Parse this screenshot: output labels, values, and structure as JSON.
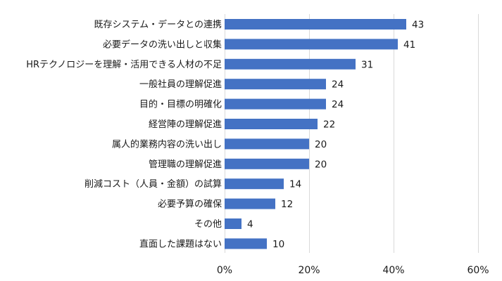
{
  "chart_data": {
    "type": "bar",
    "orientation": "horizontal",
    "categories": [
      "既存システム・データとの連携",
      "必要データの洗い出しと収集",
      "HRテクノロジーを理解・活用できる人材の不足",
      "一般社員の理解促進",
      "目的・目標の明確化",
      "経営陣の理解促進",
      "属人的業務内容の洗い出し",
      "管理職の理解促進",
      "削減コスト（人員・金額）の試算",
      "必要予算の確保",
      "その他",
      "直面した課題はない"
    ],
    "values": [
      43,
      41,
      31,
      24,
      24,
      22,
      20,
      20,
      14,
      12,
      4,
      10
    ],
    "xlim": [
      0,
      60
    ],
    "xticks": [
      0,
      20,
      40,
      60
    ],
    "xtick_labels": [
      "0%",
      "20%",
      "40%",
      "60%"
    ],
    "grid": "vertical",
    "bar_color": "#4472C4",
    "grid_color": "#d9d9d9",
    "title": "",
    "xlabel": "",
    "ylabel": "",
    "legend": "none"
  }
}
